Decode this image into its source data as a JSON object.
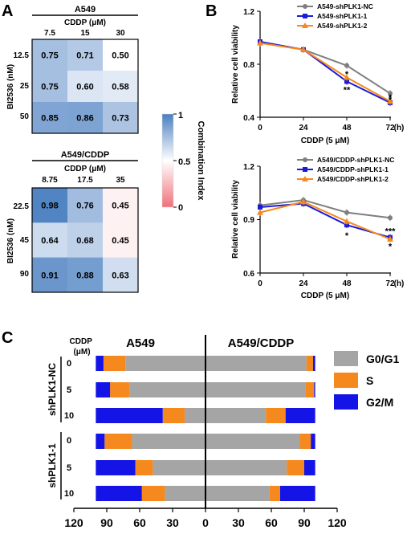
{
  "panel_labels": {
    "a": "A",
    "b": "B",
    "c": "C"
  },
  "colorbar": {
    "label": "Combination Index",
    "ticks": [
      "1",
      "0.5",
      "0"
    ],
    "colors": {
      "high": "#4a7fc1",
      "mid": "#ffffff",
      "low": "#f0707a"
    }
  },
  "chart_data": [
    {
      "type": "heatmap",
      "title": "A549",
      "xlabel": "CDDP (μM)",
      "ylabel": "BI2536 (nM)",
      "x": [
        "7.5",
        "15",
        "30"
      ],
      "y": [
        "12.5",
        "25",
        "50"
      ],
      "values": [
        [
          0.75,
          0.71,
          0.5
        ],
        [
          0.75,
          0.6,
          0.58
        ],
        [
          0.85,
          0.86,
          0.73
        ]
      ],
      "labels": [
        [
          "0.75",
          "0.71",
          "0.50"
        ],
        [
          "0.75",
          "0.60",
          "0.58"
        ],
        [
          "0.85",
          "0.86",
          "0.73"
        ]
      ],
      "color_range": [
        0,
        1
      ]
    },
    {
      "type": "heatmap",
      "title": "A549/CDDP",
      "xlabel": "CDDP (μM)",
      "ylabel": "BI2536 (nM)",
      "x": [
        "8.75",
        "17.5",
        "35"
      ],
      "y": [
        "22.5",
        "45",
        "90"
      ],
      "values": [
        [
          0.98,
          0.76,
          0.45
        ],
        [
          0.64,
          0.68,
          0.45
        ],
        [
          0.91,
          0.88,
          0.63
        ]
      ],
      "labels": [
        [
          "0.98",
          "0.76",
          "0.45"
        ],
        [
          "0.64",
          "0.68",
          "0.45"
        ],
        [
          "0.91",
          "0.88",
          "0.63"
        ]
      ],
      "color_range": [
        0,
        1
      ]
    },
    {
      "type": "line",
      "xlabel": "CDDP (5 μM)",
      "ylabel": "Relative cell viability",
      "x": [
        0,
        24,
        48,
        72
      ],
      "x_unit": "(h)",
      "xlim": [
        0,
        72
      ],
      "ylim": [
        0.4,
        1.2
      ],
      "yticks": [
        0.4,
        0.8,
        1.2
      ],
      "ytick_labels": [
        "0.4",
        "0.8",
        "1.2"
      ],
      "legend": "top-right",
      "series": [
        {
          "name": "A549-shPLK1-NC",
          "color": "#7f7f7f",
          "marker": "circle",
          "values": [
            0.97,
            0.91,
            0.79,
            0.58
          ]
        },
        {
          "name": "A549-shPLK1-1",
          "color": "#1a1adb",
          "marker": "square",
          "values": [
            0.97,
            0.91,
            0.67,
            0.51
          ]
        },
        {
          "name": "A549-shPLK1-2",
          "color": "#f5891e",
          "marker": "triangle",
          "values": [
            0.96,
            0.91,
            0.7,
            0.52
          ]
        }
      ],
      "annotations": [
        {
          "x": 48,
          "y": 0.74,
          "text": "*"
        },
        {
          "x": 48,
          "y": 0.62,
          "text": "**"
        },
        {
          "x": 72,
          "y": 0.565,
          "text": "*"
        },
        {
          "x": 72,
          "y": 0.545,
          "text": "*"
        }
      ]
    },
    {
      "type": "line",
      "xlabel": "CDDP (5 μM)",
      "ylabel": "Relative cell viability",
      "x": [
        0,
        24,
        48,
        72
      ],
      "x_unit": "(h)",
      "xlim": [
        0,
        72
      ],
      "ylim": [
        0.6,
        1.2
      ],
      "yticks": [
        0.6,
        0.9,
        1.2
      ],
      "ytick_labels": [
        "0.6",
        "0.9",
        "1.2"
      ],
      "legend": "top-right",
      "series": [
        {
          "name": "A549/CDDP-shPLK1-NC",
          "color": "#7f7f7f",
          "marker": "circle",
          "values": [
            0.98,
            1.01,
            0.94,
            0.91
          ]
        },
        {
          "name": "A549/CDDP-shPLK1-1",
          "color": "#1a1adb",
          "marker": "square",
          "values": [
            0.97,
            0.99,
            0.87,
            0.8
          ]
        },
        {
          "name": "A549/CDDP-shPLK1-2",
          "color": "#f5891e",
          "marker": "triangle",
          "values": [
            0.94,
            1.0,
            0.89,
            0.79
          ]
        }
      ],
      "annotations": [
        {
          "x": 48,
          "y": 0.82,
          "text": "*"
        },
        {
          "x": 72,
          "y": 0.845,
          "text": "***"
        },
        {
          "x": 72,
          "y": 0.76,
          "text": "*"
        }
      ]
    },
    {
      "type": "bar",
      "orientation": "horizontal-stacked-butterfly",
      "panels": [
        "A549",
        "A549/CDDP"
      ],
      "group_header": "CDDP (μM)",
      "groups": [
        {
          "name": "shPLK1-NC",
          "doses": [
            "0",
            "5",
            "10"
          ]
        },
        {
          "name": "shPLK1-1",
          "doses": [
            "0",
            "5",
            "10"
          ]
        }
      ],
      "series": [
        {
          "name": "G0/G1",
          "color": "#a5a5a5"
        },
        {
          "name": "S",
          "color": "#f5891e"
        },
        {
          "name": "G2/M",
          "color": "#1414e6"
        }
      ],
      "xticks": [
        "120",
        "90",
        "60",
        "30",
        "0",
        "30",
        "60",
        "90",
        "120"
      ],
      "xlim": [
        -120,
        120
      ],
      "rows": [
        {
          "A549": {
            "G0/G1": 73,
            "S": 20,
            "G2/M": 7
          },
          "A549/CDDP": {
            "G0/G1": 92,
            "S": 6,
            "G2/M": 2
          }
        },
        {
          "A549": {
            "G0/G1": 69,
            "S": 18,
            "G2/M": 13
          },
          "A549/CDDP": {
            "G0/G1": 91,
            "S": 8,
            "G2/M": 1
          }
        },
        {
          "A549": {
            "G0/G1": 19,
            "S": 20,
            "G2/M": 61
          },
          "A549/CDDP": {
            "G0/G1": 55,
            "S": 18,
            "G2/M": 27
          }
        },
        {
          "A549": {
            "G0/G1": 67,
            "S": 25,
            "G2/M": 8
          },
          "A549/CDDP": {
            "G0/G1": 86,
            "S": 10,
            "G2/M": 4
          }
        },
        {
          "A549": {
            "G0/G1": 48,
            "S": 16,
            "G2/M": 36
          },
          "A549/CDDP": {
            "G0/G1": 74,
            "S": 16,
            "G2/M": 10
          }
        },
        {
          "A549": {
            "G0/G1": 37,
            "S": 21,
            "G2/M": 42
          },
          "A549/CDDP": {
            "G0/G1": 58,
            "S": 10,
            "G2/M": 32
          }
        }
      ]
    }
  ]
}
